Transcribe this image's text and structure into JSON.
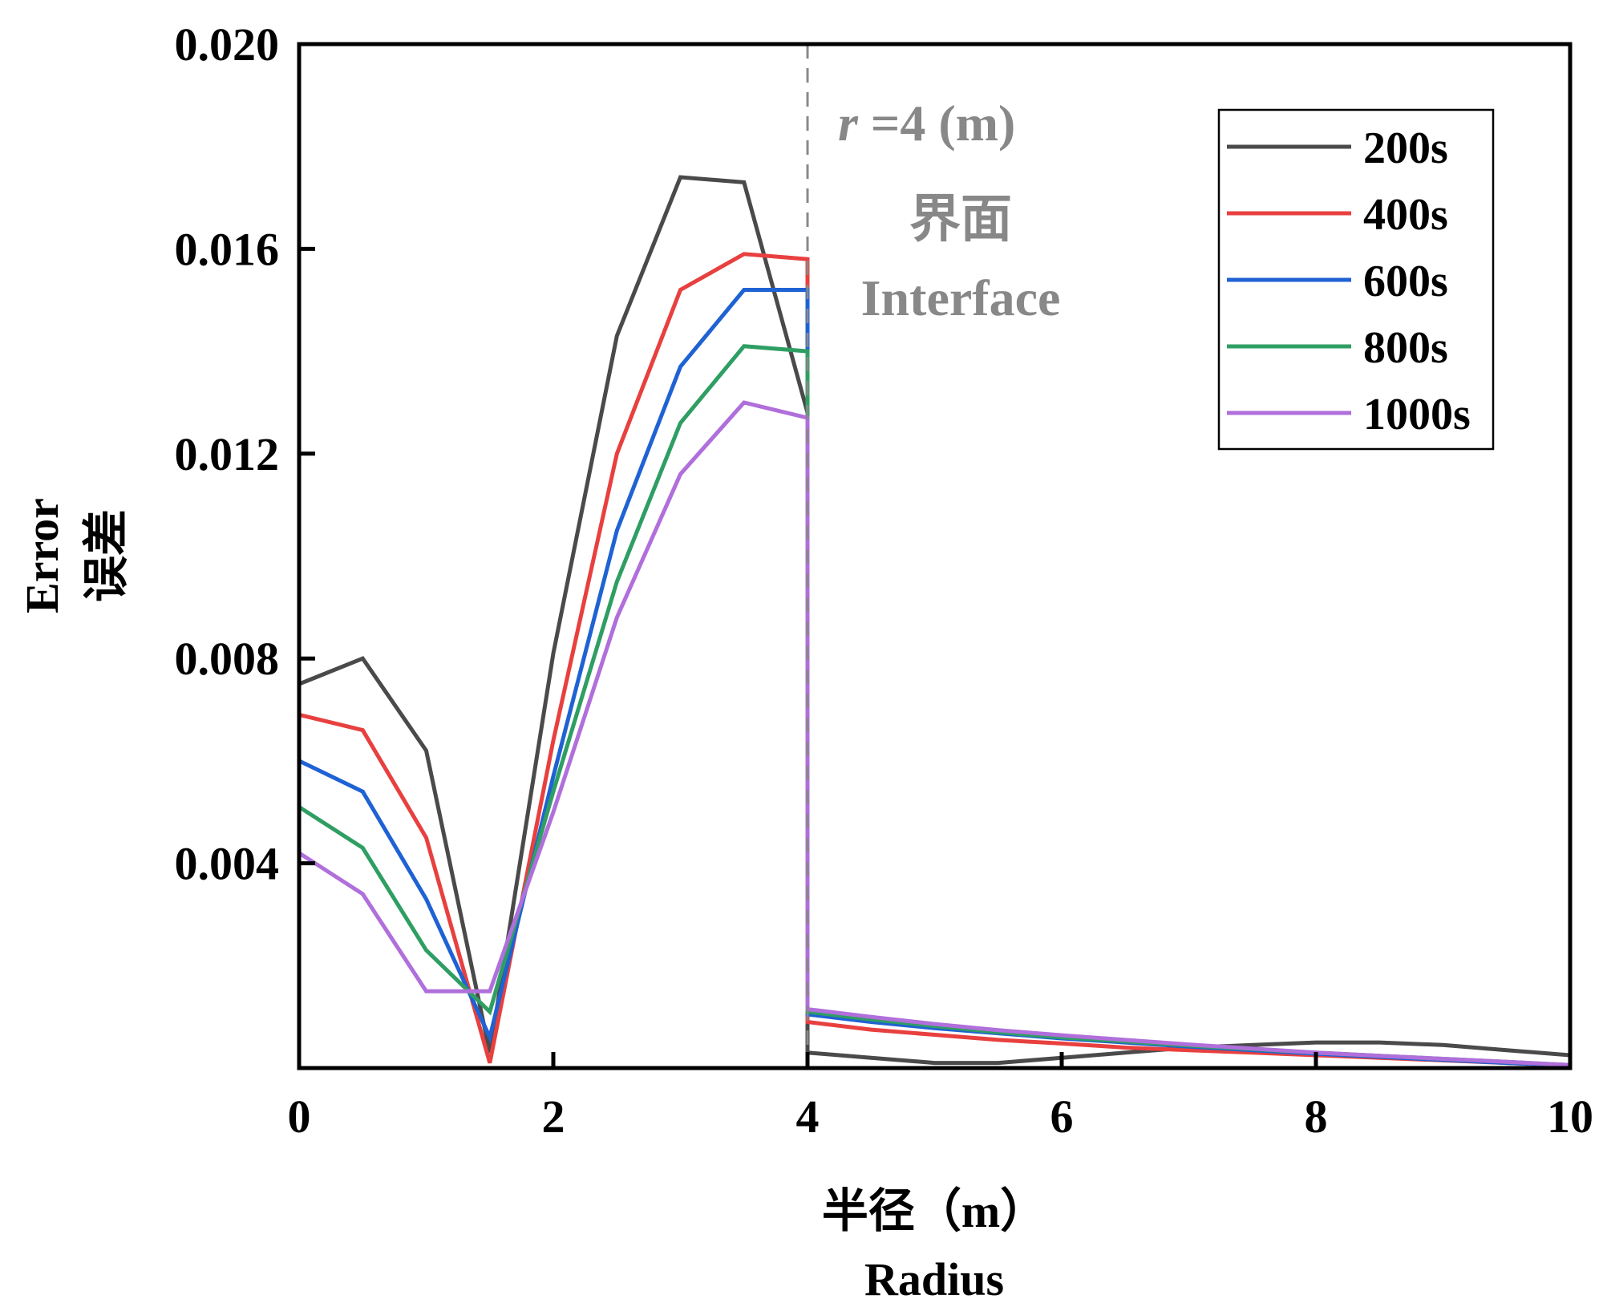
{
  "chart_data": {
    "type": "line",
    "xlabel_cn": "半径（m）",
    "xlabel_en": "Radius",
    "ylabel_en": "Error",
    "ylabel_cn": "误差",
    "xlim": [
      0,
      10
    ],
    "ylim": [
      0,
      0.02
    ],
    "x_ticks": [
      0,
      2,
      4,
      6,
      8,
      10
    ],
    "x_tick_labels": [
      "0",
      "2",
      "4",
      "6",
      "8",
      "10"
    ],
    "y_ticks": [
      0.004,
      0.008,
      0.012,
      0.016,
      0.02
    ],
    "y_tick_labels": [
      "0.004",
      "0.008",
      "0.012",
      "0.016",
      "0.020"
    ],
    "grid": false,
    "legend_position": "top-right",
    "interface": {
      "x": 4,
      "label_var": "r",
      "label_eq": " =4 (m)",
      "label_cn": "界面",
      "label_en": "Interface",
      "color": "#888888"
    },
    "series": [
      {
        "name": "200s",
        "color": "#4a4a4a",
        "points": [
          [
            0,
            0.0075
          ],
          [
            0.5,
            0.008
          ],
          [
            1,
            0.0062
          ],
          [
            1.5,
            0.0003
          ],
          [
            2,
            0.0081
          ],
          [
            2.5,
            0.0143
          ],
          [
            3,
            0.0174
          ],
          [
            3.5,
            0.0173
          ],
          [
            4,
            0.0128
          ],
          [
            4,
            0.0003
          ],
          [
            4.5,
            0.0002
          ],
          [
            5,
            0.0001
          ],
          [
            5.5,
            0.0001
          ],
          [
            6,
            0.0002
          ],
          [
            6.5,
            0.0003
          ],
          [
            7,
            0.0004
          ],
          [
            7.5,
            0.00045
          ],
          [
            8,
            0.0005
          ],
          [
            8.5,
            0.0005
          ],
          [
            9,
            0.00045
          ],
          [
            9.5,
            0.00035
          ],
          [
            10,
            0.00025
          ]
        ]
      },
      {
        "name": "400s",
        "color": "#e8403f",
        "points": [
          [
            0,
            0.0069
          ],
          [
            0.5,
            0.0066
          ],
          [
            1,
            0.0045
          ],
          [
            1.5,
            0.0001
          ],
          [
            2,
            0.0064
          ],
          [
            2.5,
            0.012
          ],
          [
            3,
            0.0152
          ],
          [
            3.5,
            0.0159
          ],
          [
            4,
            0.0158
          ],
          [
            4,
            0.0009
          ],
          [
            4.5,
            0.00075
          ],
          [
            5,
            0.00065
          ],
          [
            5.5,
            0.00055
          ],
          [
            6,
            0.00048
          ],
          [
            6.5,
            0.0004
          ],
          [
            7,
            0.00035
          ],
          [
            7.5,
            0.0003
          ],
          [
            8,
            0.00025
          ],
          [
            8.5,
            0.0002
          ],
          [
            9,
            0.00015
          ],
          [
            9.5,
            0.0001
          ],
          [
            10,
            5e-05
          ]
        ]
      },
      {
        "name": "600s",
        "color": "#1f62d4",
        "points": [
          [
            0,
            0.006
          ],
          [
            0.5,
            0.0054
          ],
          [
            1,
            0.0033
          ],
          [
            1.5,
            0.0006
          ],
          [
            2,
            0.0057
          ],
          [
            2.5,
            0.0105
          ],
          [
            3,
            0.0137
          ],
          [
            3.5,
            0.0152
          ],
          [
            4,
            0.0152
          ],
          [
            4,
            0.00105
          ],
          [
            4.5,
            0.0009
          ],
          [
            5,
            0.00078
          ],
          [
            5.5,
            0.00068
          ],
          [
            6,
            0.00058
          ],
          [
            6.5,
            0.0005
          ],
          [
            7,
            0.00042
          ],
          [
            7.5,
            0.00035
          ],
          [
            8,
            0.00028
          ],
          [
            8.5,
            0.00022
          ],
          [
            9,
            0.00016
          ],
          [
            9.5,
            0.0001
          ],
          [
            10,
            5e-05
          ]
        ]
      },
      {
        "name": "800s",
        "color": "#2f9e63",
        "points": [
          [
            0,
            0.0051
          ],
          [
            0.5,
            0.0043
          ],
          [
            1,
            0.0023
          ],
          [
            1.5,
            0.0011
          ],
          [
            2,
            0.0054
          ],
          [
            2.5,
            0.0095
          ],
          [
            3,
            0.0126
          ],
          [
            3.5,
            0.0141
          ],
          [
            4,
            0.014
          ],
          [
            4,
            0.0011
          ],
          [
            4.5,
            0.00095
          ],
          [
            5,
            0.00082
          ],
          [
            5.5,
            0.0007
          ],
          [
            6,
            0.0006
          ],
          [
            6.5,
            0.00052
          ],
          [
            7,
            0.00044
          ],
          [
            7.5,
            0.00037
          ],
          [
            8,
            0.0003
          ],
          [
            8.5,
            0.00024
          ],
          [
            9,
            0.00018
          ],
          [
            9.5,
            0.00012
          ],
          [
            10,
            6e-05
          ]
        ]
      },
      {
        "name": "1000s",
        "color": "#b06fdb",
        "points": [
          [
            0,
            0.0042
          ],
          [
            0.5,
            0.0034
          ],
          [
            1,
            0.0015
          ],
          [
            1.5,
            0.0015
          ],
          [
            2,
            0.005
          ],
          [
            2.5,
            0.0088
          ],
          [
            3,
            0.0116
          ],
          [
            3.5,
            0.013
          ],
          [
            4,
            0.0127
          ],
          [
            4,
            0.00115
          ],
          [
            4.5,
            0.001
          ],
          [
            5,
            0.00086
          ],
          [
            5.5,
            0.00074
          ],
          [
            6,
            0.00064
          ],
          [
            6.5,
            0.00055
          ],
          [
            7,
            0.00046
          ],
          [
            7.5,
            0.00038
          ],
          [
            8,
            0.0003
          ],
          [
            8.5,
            0.00024
          ],
          [
            9,
            0.00018
          ],
          [
            9.5,
            0.00012
          ],
          [
            10,
            6e-05
          ]
        ]
      }
    ]
  }
}
